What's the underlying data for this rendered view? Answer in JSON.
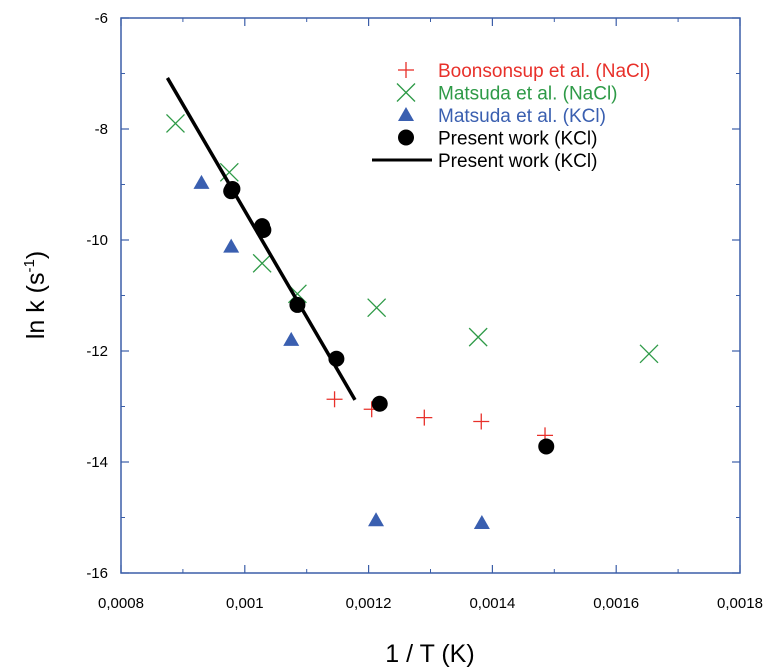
{
  "chart_data": {
    "type": "scatter",
    "title": "",
    "xlabel": "1 / T (K)",
    "ylabel_main": "ln k (s",
    "ylabel_sup": "-1",
    "ylabel_close": ")",
    "xlim": [
      0.0008,
      0.0018
    ],
    "ylim": [
      -16,
      -6
    ],
    "xticks": [
      0.0008,
      0.001,
      0.0012,
      0.0014,
      0.0016,
      0.0018
    ],
    "xtick_labels": [
      "0,0008",
      "0,001",
      "0,0012",
      "0,0014",
      "0,0016",
      "0,0018"
    ],
    "yticks": [
      -16,
      -14,
      -12,
      -10,
      -8,
      -6
    ],
    "ytick_labels": [
      "-16",
      "-14",
      "-12",
      "-10",
      "-8",
      "-6"
    ],
    "grid": false,
    "legend_position": "top-right",
    "series": [
      {
        "name": "Boonsonsup et al. (NaCl)",
        "marker": "plus",
        "color": "#e8302a",
        "x": [
          0.001145,
          0.001205,
          0.00129,
          0.001382,
          0.001485
        ],
        "y": [
          -12.87,
          -13.05,
          -13.2,
          -13.27,
          -13.52
        ]
      },
      {
        "name": "Matsuda et al. (NaCl)",
        "marker": "cross",
        "color": "#2e9a47",
        "x": [
          0.000888,
          0.000975,
          0.001028,
          0.001085,
          0.001213,
          0.001377,
          0.001653
        ],
        "y": [
          -7.9,
          -8.78,
          -10.42,
          -10.97,
          -11.22,
          -11.75,
          -12.05
        ]
      },
      {
        "name": "Matsuda et al. (KCl)",
        "marker": "triangle",
        "color": "#3a5fb0",
        "x": [
          0.00093,
          0.000978,
          0.001075,
          0.001212,
          0.001383
        ],
        "y": [
          -8.97,
          -10.12,
          -11.8,
          -15.05,
          -15.1
        ]
      },
      {
        "name": "Present work (KCl)",
        "marker": "circle",
        "color": "#000000",
        "x": [
          0.000978,
          0.00098,
          0.001028,
          0.00103,
          0.001085,
          0.001148,
          0.001218,
          0.001487
        ],
        "y": [
          -9.12,
          -9.08,
          -9.75,
          -9.82,
          -11.17,
          -12.14,
          -12.95,
          -13.72
        ]
      },
      {
        "name": "Present work (KCl)",
        "marker": "line",
        "color": "#000000",
        "x": [
          0.000875,
          0.001178
        ],
        "y": [
          -7.08,
          -12.88
        ]
      }
    ]
  }
}
